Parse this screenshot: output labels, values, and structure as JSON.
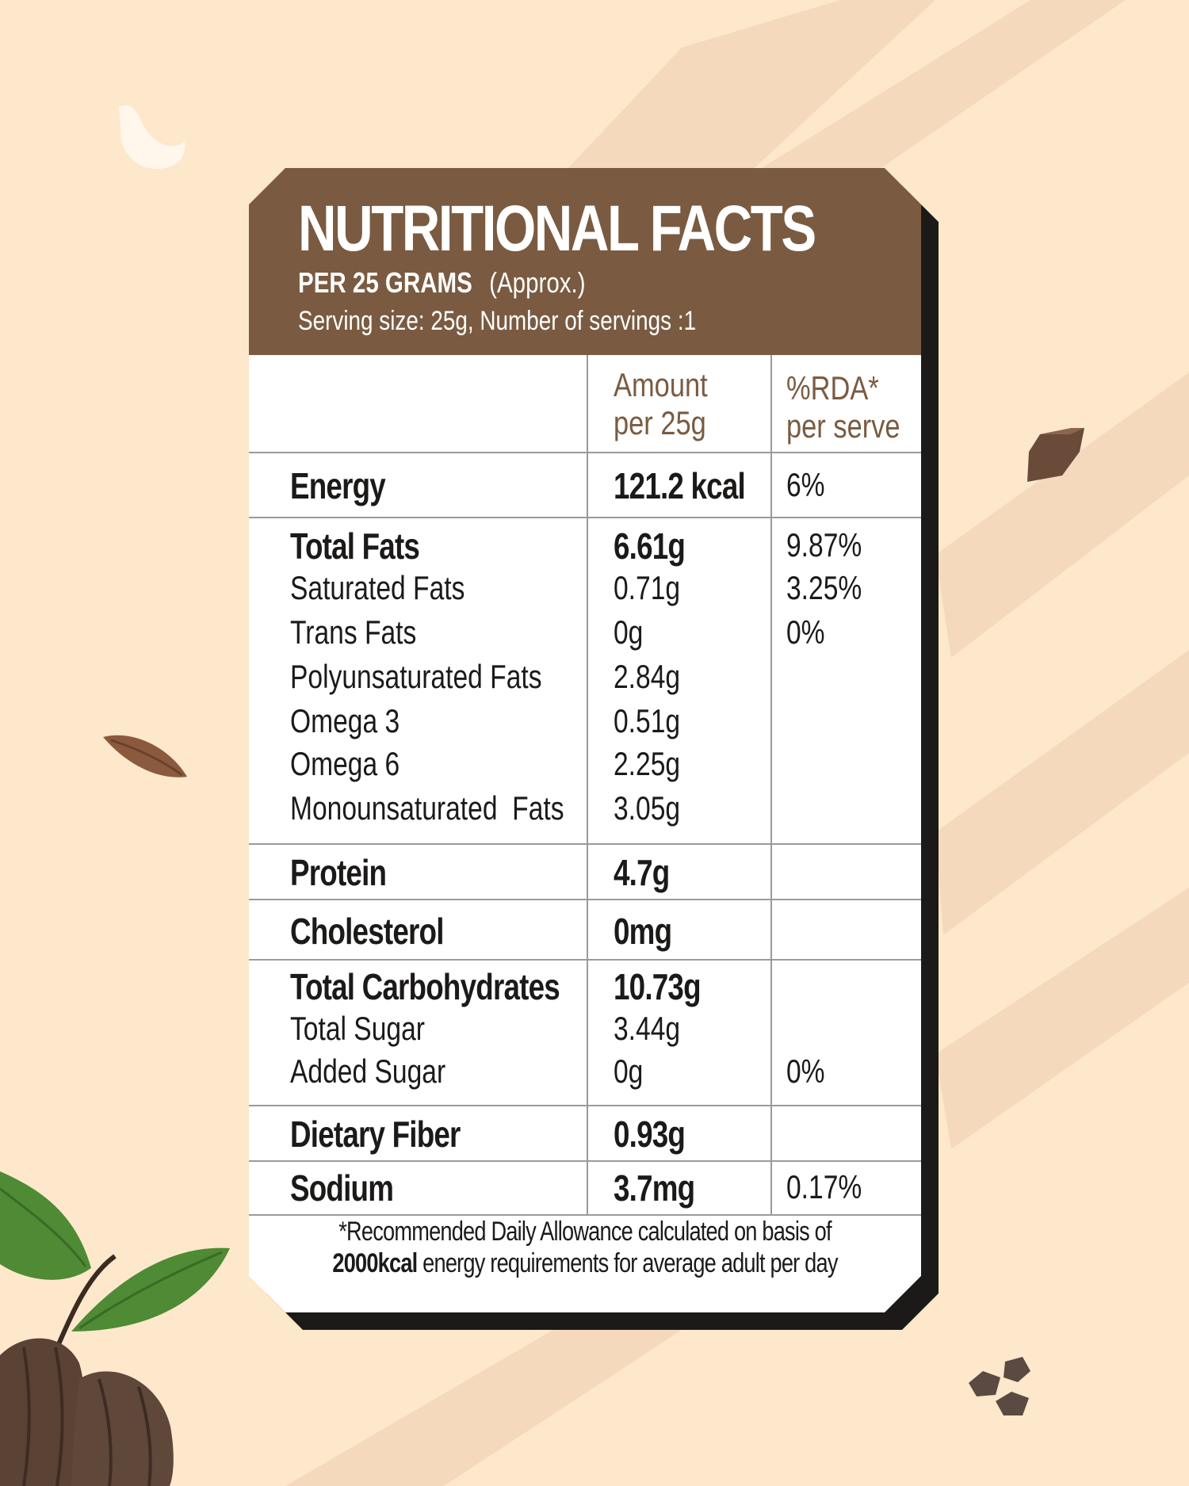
{
  "header": {
    "title": "NUTRITIONAL FACTS",
    "per": "PER 25 GRAMS",
    "approx": "(Approx.)",
    "serving": "Serving size: 25g, Number of servings :1"
  },
  "columns": {
    "amount_line1": "Amount",
    "amount_line2": "per 25g",
    "rda_line1": "%RDA*",
    "rda_line2": "per serve"
  },
  "rows": {
    "energy": {
      "name": "Energy",
      "amount": "121.2 kcal",
      "rda": "6%"
    },
    "total_fats": {
      "name": "Total Fats",
      "amount": "6.61g",
      "rda": "9.87%"
    },
    "saturated_fats": {
      "name": "Saturated Fats",
      "amount": "0.71g",
      "rda": "3.25%"
    },
    "trans_fats": {
      "name": "Trans Fats",
      "amount": "0g",
      "rda": "0%"
    },
    "polyunsaturated_fats": {
      "name": "Polyunsaturated Fats",
      "amount": "2.84g"
    },
    "omega_3": {
      "name": "Omega 3",
      "amount": "0.51g"
    },
    "omega_6": {
      "name": "Omega 6",
      "amount": "2.25g"
    },
    "monounsaturated_fats": {
      "name": "Monounsaturated  Fats",
      "amount": "3.05g"
    },
    "protein": {
      "name": "Protein",
      "amount": "4.7g"
    },
    "cholesterol": {
      "name": "Cholesterol",
      "amount": "0mg"
    },
    "total_carbohydrates": {
      "name": "Total Carbohydrates",
      "amount": "10.73g"
    },
    "total_sugar": {
      "name": "Total Sugar",
      "amount": "3.44g"
    },
    "added_sugar": {
      "name": "Added Sugar",
      "amount": "0g",
      "rda": "0%"
    },
    "dietary_fiber": {
      "name": "Dietary Fiber",
      "amount": "0.93g"
    },
    "sodium": {
      "name": "Sodium",
      "amount": "3.7mg",
      "rda": "0.17%"
    }
  },
  "footnote": {
    "line1": "*Recommended Daily Allowance calculated on basis of",
    "line2_bold": "2000kcal",
    "line2_rest": " energy requirements for average adult per day"
  },
  "decorations": [
    "cocoa-leaf-icon",
    "cocoa-pod-icon",
    "cocoa-bean-icon",
    "cocoa-nib-icon"
  ],
  "colors": {
    "background": "#fde8cc",
    "header": "#7a5b41",
    "leaf": "#4f8a34",
    "pod": "#5a4235",
    "shadow": "#1c1a19"
  }
}
